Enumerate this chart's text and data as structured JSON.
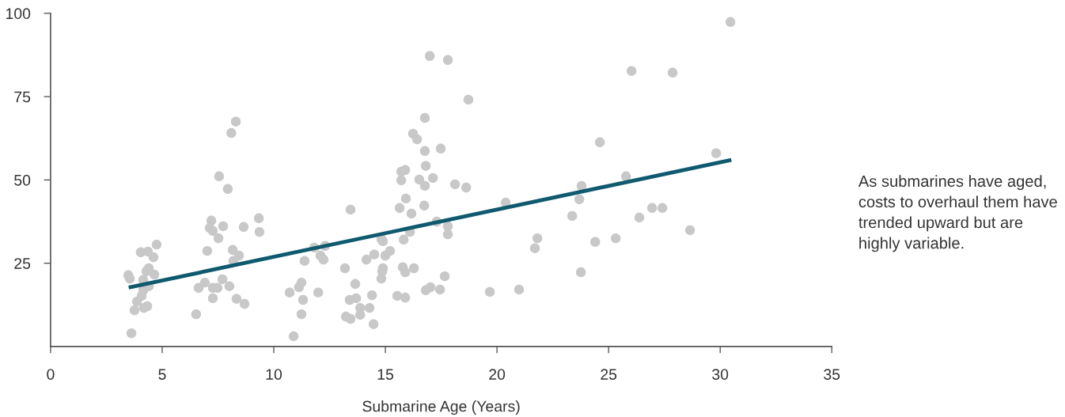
{
  "chart_data": {
    "type": "scatter",
    "xlabel": "Submarine Age (Years)",
    "xlim": [
      0,
      35
    ],
    "xticks": [
      0,
      5,
      10,
      15,
      20,
      25,
      30,
      35
    ],
    "ylim": [
      0,
      100
    ],
    "yticks": [
      25,
      50,
      75,
      100
    ],
    "grid": false,
    "annotations": [
      "As submarines have aged, costs to overhaul them have trended upward but are highly variable."
    ],
    "series": [
      {
        "color": "#c8c8c8",
        "marker": "circle",
        "x": [
          3.62,
          3.48,
          3.55,
          4.75,
          4.04,
          4.36,
          4.61,
          4.4,
          4.29,
          4.65,
          4.15,
          4.4,
          4.08,
          3.87,
          4.33,
          3.76,
          4.18,
          4.15,
          7.55,
          7.94,
          7.2,
          7.73,
          8.65,
          9.33,
          9.36,
          7.13,
          7.27,
          7.52,
          7.02,
          8.16,
          8.44,
          8.19,
          7.7,
          8.01,
          6.63,
          6.91,
          7.27,
          7.48,
          7.27,
          8.33,
          8.69,
          6.52,
          8.1,
          8.3,
          10.71,
          11.24,
          11.13,
          11.31,
          11.99,
          11.24,
          10.89,
          11.38,
          11.81,
          12.09,
          12.23,
          12.3,
          13.19,
          13.44,
          13.65,
          13.4,
          13.69,
          13.87,
          14.29,
          13.87,
          13.23,
          13.44,
          14.4,
          14.47,
          14.15,
          14.5,
          15.0,
          15.21,
          14.82,
          14.89,
          14.89,
          14.82,
          14.86,
          15.53,
          15.89,
          15.78,
          15.89,
          16.28,
          15.82,
          16.1,
          15.64,
          16.17,
          15.92,
          16.74,
          15.71,
          16.52,
          16.77,
          17.13,
          18.12,
          18.62,
          17.3,
          17.8,
          17.8,
          17.66,
          16.81,
          17.02,
          17.45,
          19.68,
          16.99,
          17.8,
          18.72,
          16.77,
          16.24,
          16.42,
          16.77,
          17.48,
          16.81,
          15.89,
          15.71,
          26.03,
          27.87,
          24.61,
          29.82,
          20.39,
          23.79,
          23.69,
          25.78,
          23.37,
          26.95,
          27.41,
          26.38,
          28.65,
          21.81,
          21.7,
          24.4,
          25.32,
          23.76,
          20.99,
          30.46
        ],
        "values": [
          4.0,
          21.4,
          20.4,
          30.6,
          28.3,
          28.5,
          26.8,
          23.5,
          22.6,
          21.6,
          20.0,
          18.1,
          15.2,
          13.5,
          12.1,
          10.9,
          11.6,
          16.9,
          51.1,
          47.3,
          37.8,
          36.1,
          35.9,
          38.5,
          34.4,
          35.6,
          34.7,
          32.5,
          28.7,
          29.0,
          27.3,
          25.7,
          20.2,
          18.1,
          17.6,
          19.2,
          17.6,
          17.6,
          14.5,
          14.3,
          12.8,
          9.7,
          64.1,
          67.5,
          16.2,
          19.2,
          17.8,
          14.0,
          16.2,
          9.7,
          3.1,
          25.7,
          29.7,
          27.3,
          26.1,
          30.2,
          23.5,
          41.1,
          18.8,
          14.0,
          14.5,
          11.6,
          11.6,
          9.5,
          9.0,
          8.3,
          15.4,
          6.7,
          26.1,
          27.6,
          27.3,
          28.7,
          32.3,
          31.6,
          23.5,
          20.4,
          22.6,
          15.2,
          14.7,
          23.8,
          22.3,
          23.5,
          32.1,
          34.4,
          41.6,
          39.9,
          44.4,
          42.3,
          49.9,
          50.1,
          48.2,
          50.6,
          48.7,
          47.7,
          37.5,
          36.1,
          33.7,
          21.1,
          16.9,
          17.8,
          17.1,
          16.4,
          87.2,
          86.0,
          74.1,
          68.6,
          63.9,
          62.2,
          58.7,
          59.4,
          54.2,
          53.0,
          52.5,
          82.7,
          82.2,
          61.3,
          58.0,
          43.2,
          48.2,
          44.2,
          51.1,
          39.2,
          41.6,
          41.6,
          38.7,
          34.9,
          32.5,
          29.5,
          31.4,
          32.5,
          22.3,
          17.1,
          97.4
        ]
      },
      {
        "type": "line",
        "color": "#0f5a6e",
        "x": [
          3.5,
          30.5
        ],
        "values": [
          17.7,
          56.0
        ],
        "marker": "none",
        "line_style": "solid"
      }
    ]
  }
}
